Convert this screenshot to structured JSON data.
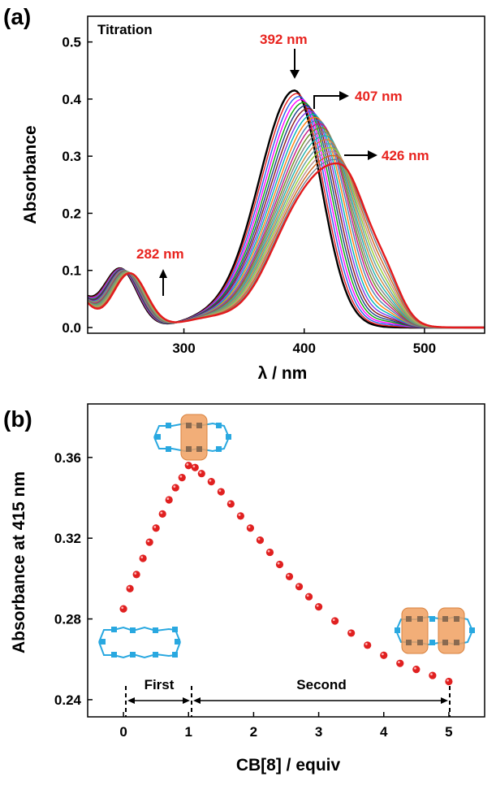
{
  "colors": {
    "accent_red": "#e8231e",
    "dot_red": "#e02020",
    "host_orange": "#f0a060",
    "chain_blue": "#29a8e0",
    "series_palette": [
      "#000000",
      "#e41a1c",
      "#2563eb",
      "#ff00ff",
      "#0aa60a",
      "#1e3a8a",
      "#8b1a1a",
      "#7c3aed",
      "#00b5b5",
      "#ff7f0e",
      "#4682b4",
      "#c71585",
      "#6b8e23",
      "#808080",
      "#20b2aa",
      "#cd853f",
      "#5f9ea0",
      "#9acd32",
      "#bc8f8f",
      "#d2691e",
      "#708090",
      "#e41a1c"
    ]
  },
  "chart_data": [
    {
      "type": "line",
      "panel_label": "(a)",
      "legend_text": "Titration",
      "xlabel": "λ / nm",
      "ylabel": "Absorbance",
      "xlim": [
        220,
        550
      ],
      "ylim": [
        -0.01,
        0.545
      ],
      "xticks": [
        300,
        400,
        500
      ],
      "yticks": [
        0.0,
        0.1,
        0.2,
        0.3,
        0.4,
        0.5
      ],
      "ytick_labels": [
        "0.0",
        "0.1",
        "0.2",
        "0.3",
        "0.4",
        "0.5"
      ],
      "series_count": 22,
      "start_spectrum": {
        "peak_nm": 392,
        "peak_abs": 0.415,
        "uv_peak_nm": 247,
        "uv_peak_abs": 0.103
      },
      "end_spectrum": {
        "peak_nm": 430,
        "peak_abs": 0.28,
        "uv_peak_nm": 255,
        "uv_peak_abs": 0.095
      },
      "intermediate_spectrum": {
        "peak_nm": 413,
        "peak_abs": 0.357
      },
      "annotations": [
        {
          "text": "392 nm",
          "x": 392,
          "y": 0.415,
          "arrow": "down"
        },
        {
          "text": "407 nm",
          "x": 407,
          "y": 0.355,
          "arrow": "right"
        },
        {
          "text": "426 nm",
          "x": 426,
          "y": 0.28,
          "arrow": "right"
        },
        {
          "text": "282 nm",
          "x": 282,
          "y": 0.05,
          "arrow": "up"
        }
      ]
    },
    {
      "type": "scatter",
      "panel_label": "(b)",
      "xlabel": "CB[8] / equiv",
      "ylabel": "Absorbance at 415 nm",
      "xlim": [
        -0.55,
        5.55
      ],
      "ylim": [
        0.2315,
        0.3865
      ],
      "xticks": [
        0,
        1,
        2,
        3,
        4,
        5
      ],
      "yticks": [
        0.24,
        0.28,
        0.32,
        0.36
      ],
      "ytick_labels": [
        "0.24",
        "0.28",
        "0.32",
        "0.36"
      ],
      "x": [
        0.0,
        0.1,
        0.2,
        0.3,
        0.4,
        0.5,
        0.6,
        0.7,
        0.8,
        0.9,
        1.0,
        1.1,
        1.2,
        1.35,
        1.5,
        1.65,
        1.8,
        1.95,
        2.1,
        2.25,
        2.4,
        2.55,
        2.7,
        2.85,
        3.0,
        3.25,
        3.5,
        3.75,
        4.0,
        4.25,
        4.5,
        4.75,
        5.0
      ],
      "y": [
        0.285,
        0.295,
        0.302,
        0.31,
        0.318,
        0.325,
        0.332,
        0.339,
        0.345,
        0.35,
        0.356,
        0.355,
        0.352,
        0.348,
        0.343,
        0.337,
        0.331,
        0.325,
        0.319,
        0.313,
        0.307,
        0.301,
        0.296,
        0.291,
        0.286,
        0.279,
        0.273,
        0.267,
        0.262,
        0.258,
        0.255,
        0.252,
        0.249
      ],
      "regions": [
        {
          "label": "First",
          "x_start": 0,
          "x_end": 1
        },
        {
          "label": "Second",
          "x_start": 1,
          "x_end": 5
        }
      ]
    }
  ]
}
